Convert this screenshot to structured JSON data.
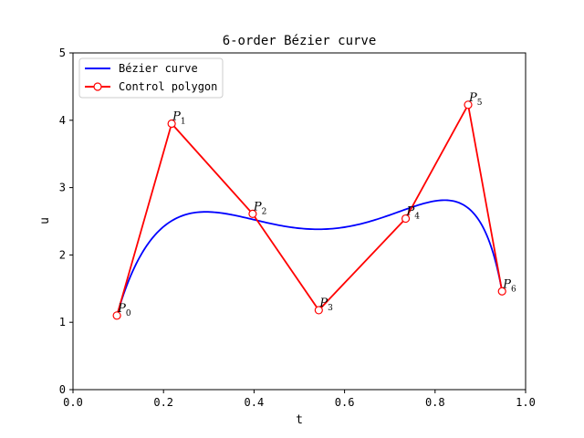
{
  "chart_data": {
    "type": "line",
    "title": "6-order Bézier curve",
    "xlabel": "t",
    "ylabel": "u",
    "xlim": [
      0.0,
      1.0
    ],
    "ylim": [
      0,
      5
    ],
    "xticks": [
      0.0,
      0.2,
      0.4,
      0.6,
      0.8,
      1.0
    ],
    "xtick_labels": [
      "0.0",
      "0.2",
      "0.4",
      "0.6",
      "0.8",
      "1.0"
    ],
    "yticks": [
      0,
      1,
      2,
      3,
      4,
      5
    ],
    "ytick_labels": [
      "0",
      "1",
      "2",
      "3",
      "4",
      "5"
    ],
    "grid": false,
    "legend_position": "upper-left",
    "series": [
      {
        "name": "Bézier curve",
        "color": "#0000ff",
        "marker": "none",
        "kind": "bezier-of-control-points"
      },
      {
        "name": "Control polygon",
        "color": "#ff0000",
        "marker": "circle-hollow",
        "points": [
          {
            "label": "P",
            "sub": "0",
            "x": 0.097,
            "y": 1.1
          },
          {
            "label": "P",
            "sub": "1",
            "x": 0.218,
            "y": 3.95
          },
          {
            "label": "P",
            "sub": "2",
            "x": 0.397,
            "y": 2.61
          },
          {
            "label": "P",
            "sub": "3",
            "x": 0.543,
            "y": 1.18
          },
          {
            "label": "P",
            "sub": "4",
            "x": 0.735,
            "y": 2.54
          },
          {
            "label": "P",
            "sub": "5",
            "x": 0.873,
            "y": 4.23
          },
          {
            "label": "P",
            "sub": "6",
            "x": 0.948,
            "y": 1.46
          }
        ]
      }
    ]
  }
}
